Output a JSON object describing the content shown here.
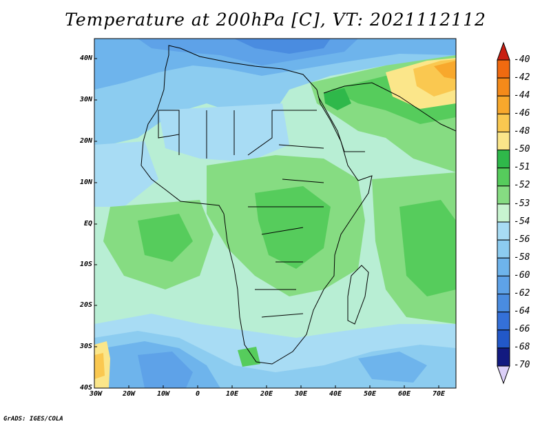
{
  "title": "Temperature at 200hPa [C], VT: 2021112112",
  "credit": "GrADS: IGES/COLA",
  "map": {
    "lat_labels": [
      "40N",
      "30N",
      "20N",
      "10N",
      "EQ",
      "10S",
      "20S",
      "30S",
      "40S"
    ],
    "lon_labels": [
      "30W",
      "20W",
      "10W",
      "0",
      "10E",
      "20E",
      "30E",
      "40E",
      "50E",
      "60E",
      "70E"
    ]
  },
  "colorbar": {
    "labels": [
      "-40",
      "-42",
      "-44",
      "-46",
      "-48",
      "-50",
      "-51",
      "-52",
      "-53",
      "-54",
      "-56",
      "-58",
      "-60",
      "-62",
      "-64",
      "-66",
      "-68",
      "-70"
    ],
    "colors": [
      "#f06a10",
      "#f48a1a",
      "#f8a82c",
      "#fac850",
      "#fbe68a",
      "#2fb84a",
      "#56cc5c",
      "#86dc82",
      "#c8f4d0",
      "#a8dcf4",
      "#8cccf0",
      "#6eb4ec",
      "#5ea2e8",
      "#4a8ce0",
      "#3470d8",
      "#2258c8",
      "#121a80"
    ],
    "top_triangle_color": "#c81e12",
    "bottom_triangle_color": "#dcd0f8"
  }
}
